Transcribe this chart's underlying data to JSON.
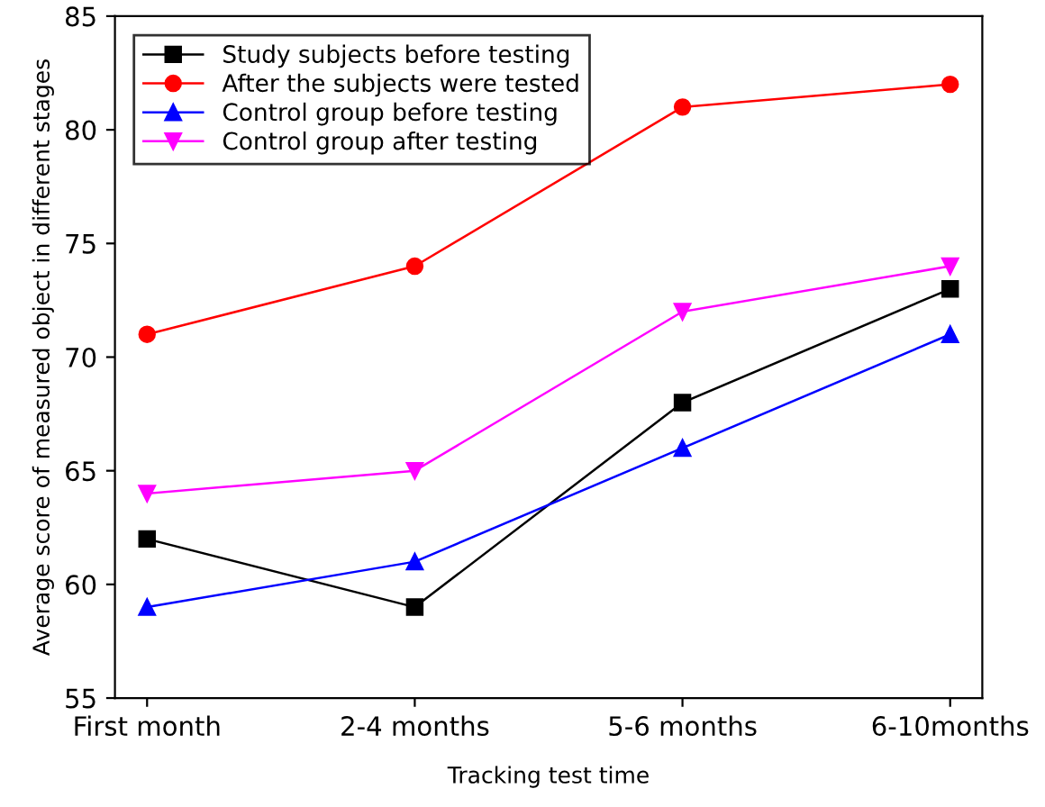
{
  "chart_data": {
    "type": "line",
    "xlabel": "Tracking test time",
    "ylabel": "Average score of measured object in different stages",
    "categories": [
      "First month",
      "2-4 months",
      "5-6 months",
      "6-10months"
    ],
    "series": [
      {
        "name": "Study subjects before testing",
        "color": "#000000",
        "marker": "square",
        "values": [
          62,
          59,
          68,
          73
        ]
      },
      {
        "name": "After the subjects were tested",
        "color": "#ff0000",
        "marker": "circle",
        "values": [
          71,
          74,
          81,
          82
        ]
      },
      {
        "name": "Control group before testing",
        "color": "#0000ff",
        "marker": "triangle",
        "values": [
          59,
          61,
          66,
          71
        ]
      },
      {
        "name": "Control group after testing",
        "color": "#ff00ff",
        "marker": "triangle_down",
        "values": [
          64,
          65,
          72,
          74
        ]
      }
    ],
    "ylim": [
      55,
      85
    ],
    "yticks": [
      55,
      60,
      65,
      70,
      75,
      80,
      85
    ],
    "grid": false,
    "legend": "top left",
    "line_style": "solid"
  }
}
